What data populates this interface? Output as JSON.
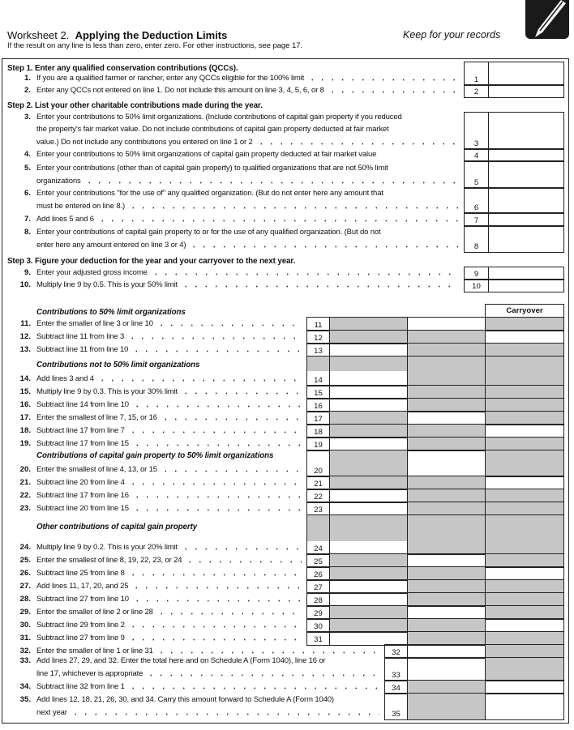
{
  "header": {
    "title_prefix": "Worksheet 2.",
    "title": "Applying the Deduction Limits",
    "keep": "Keep for your records",
    "note": "If the result on any line is less than zero, enter zero. For other instructions, see page 17.",
    "icon": "pencil-icon"
  },
  "steps": [
    {
      "text": "Step 1. Enter any qualified conservation contributions (QCCs)."
    },
    {
      "text": "Step 2. List your other charitable contributions made during the year."
    },
    {
      "text": "Step 3. Figure your deduction for the year and your carryover to the next year."
    }
  ],
  "sections": [
    "Contributions to 50% limit organizations",
    "Contributions not to 50% limit organizations",
    "Contributions of capital gain property to 50% limit organizations",
    "Other contributions of capital gain property"
  ],
  "carryover_label": "Carryover",
  "lines": [
    {
      "num": "1.",
      "box": "1",
      "text": [
        "If you are a qualified farmer or rancher, enter any QCCs eligible for the 100% limit"
      ]
    },
    {
      "num": "2.",
      "box": "2",
      "text": [
        "Enter any QCCs not entered on line 1. Do not include this amount on line 3, 4, 5, 6, or 8"
      ]
    },
    {
      "num": "3.",
      "box": "3",
      "text": [
        "Enter your contributions to 50% limit organizations. (Include contributions of capital gain property if you reduced",
        "the property's fair market value. Do not include contributions of capital gain property deducted at fair market",
        "value.) Do not include any contributions you entered on line 1 or 2"
      ]
    },
    {
      "num": "4.",
      "box": "4",
      "text": [
        "Enter your contributions to 50% limit organizations of capital gain property deducted at fair market value"
      ]
    },
    {
      "num": "5.",
      "box": "5",
      "text": [
        "Enter your contributions (other than of capital gain property) to qualified organizations that are not 50% limit",
        "organizations"
      ]
    },
    {
      "num": "6.",
      "box": "6",
      "text": [
        "Enter your contributions \"for the use of\" any qualified organization. (But do not enter here any amount that",
        "must be entered on line 8.)"
      ]
    },
    {
      "num": "7.",
      "box": "7",
      "text": [
        "Add lines 5 and 6"
      ]
    },
    {
      "num": "8.",
      "box": "8",
      "text": [
        "Enter your contributions of capital gain property to or for the use of any qualified organization. (But do not",
        "enter here any amount entered on line 3 or 4)"
      ]
    },
    {
      "num": "9.",
      "box": "9",
      "text": [
        "Enter your adjusted gross income"
      ]
    },
    {
      "num": "10.",
      "box": "10",
      "text": [
        "Multiply line 9 by 0.5. This is your 50% limit"
      ]
    },
    {
      "num": "11.",
      "box": "11",
      "text": [
        "Enter the smaller of line 3 or line 10"
      ]
    },
    {
      "num": "12.",
      "box": "12",
      "text": [
        "Subtract line 11 from line 3"
      ]
    },
    {
      "num": "13.",
      "box": "13",
      "text": [
        "Subtract line 11 from line 10"
      ]
    },
    {
      "num": "14.",
      "box": "14",
      "text": [
        "Add lines 3 and 4"
      ]
    },
    {
      "num": "15.",
      "box": "15",
      "text": [
        "Multiply line 9 by 0.3. This is your 30% limit"
      ]
    },
    {
      "num": "16.",
      "box": "16",
      "text": [
        "Subtract line 14 from line 10"
      ]
    },
    {
      "num": "17.",
      "box": "17",
      "text": [
        "Enter the smallest of line 7, 15, or 16"
      ]
    },
    {
      "num": "18.",
      "box": "18",
      "text": [
        "Subtract line 17 from line 7"
      ]
    },
    {
      "num": "19.",
      "box": "19",
      "text": [
        "Subtract line 17 from line 15"
      ]
    },
    {
      "num": "20.",
      "box": "20",
      "text": [
        "Enter the smallest of line 4, 13, or 15"
      ]
    },
    {
      "num": "21.",
      "box": "21",
      "text": [
        "Subtract line 20 from line 4"
      ]
    },
    {
      "num": "22.",
      "box": "22",
      "text": [
        "Subtract line 17 from line 16"
      ]
    },
    {
      "num": "23.",
      "box": "23",
      "text": [
        "Subtract line 20 from line 15"
      ]
    },
    {
      "num": "24.",
      "box": "24",
      "text": [
        "Multiply line 9 by 0.2. This is your 20% limit"
      ]
    },
    {
      "num": "25.",
      "box": "25",
      "text": [
        "Enter the smallest of line 8, 19, 22, 23, or 24"
      ]
    },
    {
      "num": "26.",
      "box": "26",
      "text": [
        "Subtract line 25 from line 8"
      ]
    },
    {
      "num": "27.",
      "box": "27",
      "text": [
        "Add lines 11, 17, 20, and 25"
      ]
    },
    {
      "num": "28.",
      "box": "28",
      "text": [
        "Subtract line 27 from line 10"
      ]
    },
    {
      "num": "29.",
      "box": "29",
      "text": [
        "Enter the smaller of line 2 or line 28"
      ]
    },
    {
      "num": "30.",
      "box": "30",
      "text": [
        "Subtract line 29 from line 2"
      ]
    },
    {
      "num": "31.",
      "box": "31",
      "text": [
        "Subtract line 27 from line 9"
      ]
    },
    {
      "num": "32.",
      "box": "32",
      "text": [
        "Enter the smaller of line 1 or line 31"
      ]
    },
    {
      "num": "33.",
      "box": "33",
      "text": [
        "Add lines 27, 29, and 32. Enter the total here and on Schedule A (Form 1040), line 16 or",
        "line 17, whichever is appropriate"
      ]
    },
    {
      "num": "34.",
      "box": "34",
      "text": [
        "Subtract line 32 from line 1"
      ]
    },
    {
      "num": "35.",
      "box": "35",
      "text": [
        "Add lines 12, 18, 21, 26, 30, and 34. Carry this amount forward to Schedule A (Form 1040)",
        "next year"
      ]
    }
  ]
}
